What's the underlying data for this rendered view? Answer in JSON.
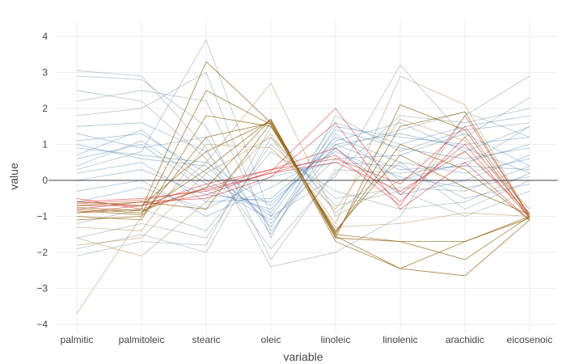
{
  "chart_data": {
    "type": "line",
    "subtype": "parallel-coordinates",
    "title": "",
    "xlabel": "variable",
    "ylabel": "value",
    "ylim": [
      -4.25,
      4.45
    ],
    "yticks": [
      4,
      3,
      2,
      1,
      0,
      -1,
      -2,
      -3,
      -4
    ],
    "ytick_labels": [
      "4",
      "3",
      "2",
      "1",
      "0",
      "−1",
      "−2",
      "−3",
      "−4"
    ],
    "categories": [
      "palmitic",
      "palmitoleic",
      "stearic",
      "oleic",
      "linoleic",
      "linolenic",
      "arachidic",
      "eicosenoic"
    ],
    "grid": true,
    "legend": "none",
    "colors": {
      "blue": "#3b75af",
      "grey_blue": "#6d8b96",
      "red": "#d62222",
      "brown": "#8b5a00",
      "tan": "#b48c50"
    },
    "series": [
      {
        "color_key": "blue",
        "opacity": 0.45,
        "values": [
          0.6,
          1.0,
          -0.3,
          -0.8,
          1.2,
          0.5,
          0.2,
          0.6
        ]
      },
      {
        "color_key": "blue",
        "opacity": 0.45,
        "values": [
          1.1,
          1.3,
          0.2,
          -1.0,
          1.4,
          0.9,
          0.6,
          0.9
        ]
      },
      {
        "color_key": "blue",
        "opacity": 0.45,
        "values": [
          0.2,
          0.5,
          -0.6,
          -0.5,
          1.0,
          0.3,
          0.4,
          0.3
        ]
      },
      {
        "color_key": "blue",
        "opacity": 0.45,
        "values": [
          1.5,
          1.6,
          0.8,
          -1.3,
          1.5,
          1.2,
          1.0,
          1.2
        ]
      },
      {
        "color_key": "blue",
        "opacity": 0.45,
        "values": [
          -0.3,
          0.0,
          -1.0,
          -0.2,
          0.8,
          0.1,
          -0.2,
          0.1
        ]
      },
      {
        "color_key": "blue",
        "opacity": 0.45,
        "values": [
          0.9,
          0.7,
          0.5,
          -0.7,
          1.1,
          1.6,
          0.8,
          1.5
        ]
      },
      {
        "color_key": "blue",
        "opacity": 0.45,
        "values": [
          0.4,
          1.1,
          -0.1,
          -1.1,
          0.6,
          0.7,
          1.3,
          0.4
        ]
      },
      {
        "color_key": "blue",
        "opacity": 0.45,
        "values": [
          1.3,
          0.9,
          1.2,
          -1.5,
          1.3,
          0.0,
          0.5,
          1.0
        ]
      },
      {
        "color_key": "blue",
        "opacity": 0.45,
        "values": [
          0.0,
          0.3,
          -0.4,
          -0.6,
          0.9,
          -0.4,
          0.0,
          0.7
        ]
      },
      {
        "color_key": "blue",
        "opacity": 0.45,
        "values": [
          0.7,
          1.4,
          0.0,
          -0.9,
          1.6,
          1.0,
          1.5,
          1.8
        ]
      },
      {
        "color_key": "blue",
        "opacity": 0.45,
        "values": [
          -0.6,
          -0.2,
          -0.8,
          0.1,
          0.5,
          0.4,
          -0.5,
          -0.1
        ]
      },
      {
        "color_key": "blue",
        "opacity": 0.45,
        "values": [
          1.0,
          0.6,
          0.4,
          -1.2,
          1.0,
          1.3,
          0.9,
          0.2
        ]
      },
      {
        "color_key": "grey_blue",
        "opacity": 0.5,
        "values": [
          2.9,
          2.8,
          1.5,
          -2.2,
          0.3,
          0.2,
          0.4,
          1.5
        ]
      },
      {
        "color_key": "grey_blue",
        "opacity": 0.5,
        "values": [
          2.5,
          2.2,
          0.6,
          -1.9,
          0.2,
          1.8,
          1.6,
          2.0
        ]
      },
      {
        "color_key": "grey_blue",
        "opacity": 0.5,
        "values": [
          3.05,
          2.9,
          0.9,
          -2.4,
          -2.0,
          -1.0,
          1.8,
          2.9
        ]
      },
      {
        "color_key": "grey_blue",
        "opacity": 0.5,
        "values": [
          -1.9,
          -1.5,
          -2.0,
          1.2,
          -0.7,
          -0.3,
          -1.0,
          -0.3
        ]
      },
      {
        "color_key": "grey_blue",
        "opacity": 0.5,
        "values": [
          -2.1,
          -1.7,
          -1.8,
          1.5,
          -0.9,
          0.5,
          -0.8,
          0.0
        ]
      },
      {
        "color_key": "grey_blue",
        "opacity": 0.5,
        "values": [
          0.3,
          0.8,
          3.9,
          -1.0,
          0.1,
          3.2,
          1.2,
          2.3
        ]
      },
      {
        "color_key": "grey_blue",
        "opacity": 0.5,
        "values": [
          1.8,
          2.0,
          3.0,
          -1.6,
          1.8,
          0.8,
          1.4,
          1.6
        ]
      },
      {
        "color_key": "grey_blue",
        "opacity": 0.5,
        "values": [
          -1.2,
          -0.8,
          -1.4,
          0.8,
          -0.3,
          -0.8,
          -0.6,
          0.2
        ]
      },
      {
        "color_key": "grey_blue",
        "opacity": 0.5,
        "values": [
          2.2,
          2.5,
          2.2,
          -1.4,
          0.9,
          1.4,
          1.9,
          1.2
        ]
      },
      {
        "color_key": "grey_blue",
        "opacity": 0.5,
        "values": [
          -1.6,
          -1.2,
          -1.6,
          1.0,
          -0.5,
          -0.2,
          -0.3,
          0.4
        ]
      },
      {
        "color_key": "red",
        "opacity": 0.6,
        "values": [
          -0.6,
          -0.5,
          -0.3,
          0.2,
          0.5,
          -0.3,
          0.8,
          -0.9
        ]
      },
      {
        "color_key": "red",
        "opacity": 0.6,
        "values": [
          -0.7,
          -0.7,
          -0.1,
          0.3,
          0.9,
          -0.6,
          1.2,
          -1.0
        ]
      },
      {
        "color_key": "red",
        "opacity": 0.6,
        "values": [
          -0.8,
          -0.6,
          -0.5,
          0.1,
          1.6,
          -0.8,
          0.5,
          -1.1
        ]
      },
      {
        "color_key": "red",
        "opacity": 0.6,
        "values": [
          -0.5,
          -0.8,
          -0.2,
          0.3,
          0.6,
          -0.1,
          1.5,
          -0.95
        ]
      },
      {
        "color_key": "red",
        "opacity": 0.6,
        "values": [
          -0.9,
          -0.7,
          -0.4,
          0.25,
          2.0,
          -0.4,
          1.0,
          -1.05
        ]
      },
      {
        "color_key": "red",
        "opacity": 0.6,
        "values": [
          -0.65,
          -0.55,
          -0.25,
          0.2,
          0.7,
          -0.7,
          1.8,
          -1.0
        ]
      },
      {
        "color_key": "brown",
        "opacity": 0.75,
        "values": [
          -0.9,
          -0.8,
          3.3,
          1.6,
          -1.5,
          1.5,
          1.9,
          -1.0
        ]
      },
      {
        "color_key": "brown",
        "opacity": 0.75,
        "values": [
          -0.8,
          -0.9,
          0.3,
          1.7,
          -1.6,
          -1.7,
          -1.7,
          -1.05
        ]
      },
      {
        "color_key": "brown",
        "opacity": 0.75,
        "values": [
          -0.7,
          -0.6,
          -0.8,
          1.6,
          -1.7,
          -2.45,
          -2.65,
          -1.1
        ]
      },
      {
        "color_key": "brown",
        "opacity": 0.75,
        "values": [
          -1.0,
          -1.1,
          1.8,
          1.5,
          -1.4,
          0.7,
          -0.2,
          -0.95
        ]
      },
      {
        "color_key": "brown",
        "opacity": 0.75,
        "values": [
          -0.6,
          -0.7,
          0.8,
          1.65,
          -1.5,
          -1.7,
          -2.2,
          -1.0
        ]
      },
      {
        "color_key": "brown",
        "opacity": 0.75,
        "values": [
          -0.85,
          -0.95,
          2.5,
          1.55,
          -1.6,
          2.1,
          1.4,
          -1.05
        ]
      },
      {
        "color_key": "brown",
        "opacity": 0.75,
        "values": [
          -0.75,
          -0.85,
          -0.2,
          1.7,
          -1.55,
          -2.45,
          -1.7,
          -1.0
        ]
      },
      {
        "color_key": "brown",
        "opacity": 0.75,
        "values": [
          -1.1,
          -1.0,
          1.2,
          1.6,
          -1.45,
          1.0,
          0.3,
          -1.1
        ]
      },
      {
        "color_key": "tan",
        "opacity": 0.6,
        "values": [
          -3.7,
          -1.0,
          0.5,
          2.7,
          -1.0,
          0.0,
          0.8,
          -1.0
        ]
      },
      {
        "color_key": "tan",
        "opacity": 0.6,
        "values": [
          -1.6,
          -2.1,
          -0.6,
          1.3,
          -1.2,
          2.9,
          2.1,
          -1.0
        ]
      },
      {
        "color_key": "tan",
        "opacity": 0.6,
        "values": [
          -1.3,
          -1.4,
          1.0,
          0.9,
          -0.8,
          1.7,
          1.1,
          -0.8
        ]
      },
      {
        "color_key": "tan",
        "opacity": 0.6,
        "values": [
          -1.8,
          -1.6,
          0.2,
          1.2,
          -1.3,
          -1.2,
          -0.9,
          -1.0
        ]
      }
    ]
  }
}
